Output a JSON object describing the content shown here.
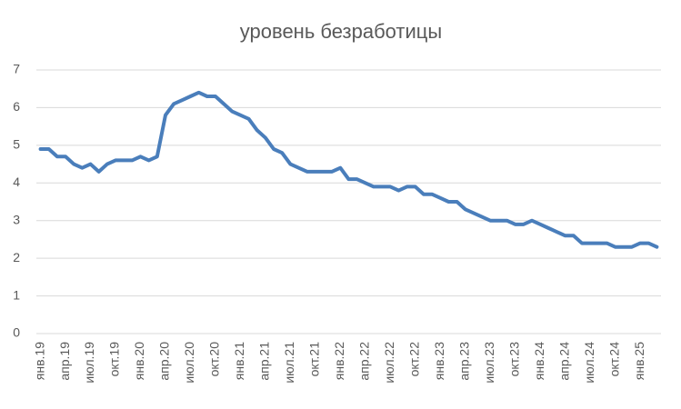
{
  "chart_data": {
    "type": "line",
    "title": "уровень безработицы",
    "categories": [
      "янв.19",
      null,
      null,
      "апр.19",
      null,
      null,
      "июл.19",
      null,
      null,
      "окт.19",
      null,
      null,
      "янв.20",
      null,
      null,
      "апр.20",
      null,
      null,
      "июл.20",
      null,
      null,
      "окт.20",
      null,
      null,
      "янв.21",
      null,
      null,
      "апр.21",
      null,
      null,
      "июл.21",
      null,
      null,
      "окт.21",
      null,
      null,
      "янв.22",
      null,
      null,
      "апр.22",
      null,
      null,
      "июл.22",
      null,
      null,
      "окт.22",
      null,
      null,
      "янв.23",
      null,
      null,
      "апр.23",
      null,
      null,
      "июл.23",
      null,
      null,
      "окт.23",
      null,
      null,
      "янв.24",
      null,
      null,
      "апр.24",
      null,
      null,
      "июл.24",
      null,
      null,
      "окт.24",
      null,
      null,
      "янв.25",
      null,
      null
    ],
    "series": [
      {
        "color": "#4a7ebb",
        "values": [
          4.9,
          4.9,
          4.7,
          4.7,
          4.5,
          4.4,
          4.5,
          4.3,
          4.5,
          4.6,
          4.6,
          4.6,
          4.7,
          4.6,
          4.7,
          5.8,
          6.1,
          6.2,
          6.3,
          6.4,
          6.3,
          6.3,
          6.1,
          5.9,
          5.8,
          5.7,
          5.4,
          5.2,
          4.9,
          4.8,
          4.5,
          4.4,
          4.3,
          4.3,
          4.3,
          4.3,
          4.4,
          4.1,
          4.1,
          4.0,
          3.9,
          3.9,
          3.9,
          3.8,
          3.9,
          3.9,
          3.7,
          3.7,
          3.6,
          3.5,
          3.5,
          3.3,
          3.2,
          3.1,
          3.0,
          3.0,
          3.0,
          2.9,
          2.9,
          3.0,
          2.9,
          2.8,
          2.7,
          2.6,
          2.6,
          2.4,
          2.4,
          2.4,
          2.4,
          2.3,
          2.3,
          2.3,
          2.4,
          2.4,
          2.3
        ]
      }
    ],
    "ylim": [
      0,
      7
    ],
    "yticks": [
      0,
      1,
      2,
      3,
      4,
      5,
      6,
      7
    ],
    "grid": true
  }
}
